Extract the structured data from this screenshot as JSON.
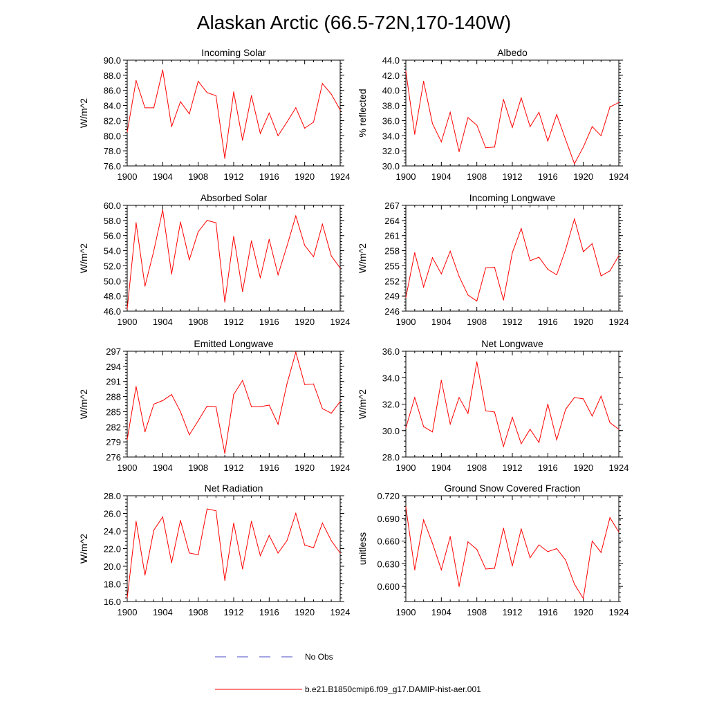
{
  "title": "Alaskan Arctic (66.5-72N,170-140W)",
  "colors": {
    "model": "#ff0000",
    "obs": "#4a4ac8",
    "axis": "#000000"
  },
  "legend": [
    {
      "label": "No Obs",
      "style": "dashed",
      "color": "#4a4ac8"
    },
    {
      "label": "b.e21.B1850cmip6.f09_g17.DAMIP-hist-aer.001",
      "style": "solid",
      "color": "#ff0000"
    }
  ],
  "chart_data": [
    {
      "type": "line",
      "title": "Incoming Solar",
      "ylabel": "W/m^2",
      "xlim": [
        1900,
        1924
      ],
      "ylim": [
        76,
        90
      ],
      "yticks": [
        "76.0",
        "78.0",
        "80.0",
        "82.0",
        "84.0",
        "86.0",
        "88.0",
        "90.0"
      ],
      "xticks": [
        "1900",
        "1904",
        "1908",
        "1912",
        "1916",
        "1920",
        "1924"
      ],
      "series": [
        {
          "x": [
            1900,
            1901,
            1902,
            1903,
            1904,
            1905,
            1906,
            1907,
            1908,
            1909,
            1910,
            1911,
            1912,
            1913,
            1914,
            1915,
            1916,
            1917,
            1918,
            1919,
            1920,
            1921,
            1922,
            1923,
            1924
          ],
          "values": [
            80.5,
            87.3,
            83.7,
            83.7,
            88.7,
            81.2,
            84.5,
            82.9,
            87.2,
            85.7,
            85.3,
            77.0,
            85.8,
            79.4,
            85.3,
            80.3,
            83.0,
            80.0,
            81.8,
            83.7,
            81.0,
            81.8,
            86.9,
            85.5,
            83.4
          ]
        }
      ]
    },
    {
      "type": "line",
      "title": "Albedo",
      "ylabel": "% reflected",
      "xlim": [
        1900,
        1924
      ],
      "ylim": [
        30,
        44
      ],
      "yticks": [
        "30.0",
        "32.0",
        "34.0",
        "36.0",
        "38.0",
        "40.0",
        "42.0",
        "44.0"
      ],
      "xticks": [
        "1900",
        "1904",
        "1908",
        "1912",
        "1916",
        "1920",
        "1924"
      ],
      "series": [
        {
          "x": [
            1900,
            1901,
            1902,
            1903,
            1904,
            1905,
            1906,
            1907,
            1908,
            1909,
            1910,
            1911,
            1912,
            1913,
            1914,
            1915,
            1916,
            1917,
            1918,
            1919,
            1920,
            1921,
            1922,
            1923,
            1924
          ],
          "values": [
            42.5,
            34.2,
            41.2,
            35.6,
            33.2,
            37.1,
            31.9,
            36.4,
            35.4,
            32.4,
            32.5,
            38.8,
            35.1,
            39.0,
            35.2,
            37.1,
            33.3,
            36.8,
            33.5,
            30.3,
            32.5,
            35.2,
            34.0,
            37.8,
            38.4
          ]
        }
      ]
    },
    {
      "type": "line",
      "title": "Absorbed Solar",
      "ylabel": "W/m^2",
      "xlim": [
        1900,
        1924
      ],
      "ylim": [
        46,
        60
      ],
      "yticks": [
        "46.0",
        "48.0",
        "50.0",
        "52.0",
        "54.0",
        "56.0",
        "58.0",
        "60.0"
      ],
      "xticks": [
        "1900",
        "1904",
        "1908",
        "1912",
        "1916",
        "1920",
        "1924"
      ],
      "series": [
        {
          "x": [
            1900,
            1901,
            1902,
            1903,
            1904,
            1905,
            1906,
            1907,
            1908,
            1909,
            1910,
            1911,
            1912,
            1913,
            1914,
            1915,
            1916,
            1917,
            1918,
            1919,
            1920,
            1921,
            1922,
            1923,
            1924
          ],
          "values": [
            46.3,
            57.7,
            49.3,
            54.0,
            59.4,
            50.9,
            57.8,
            52.8,
            56.5,
            58.0,
            57.7,
            47.2,
            55.9,
            48.6,
            55.3,
            50.4,
            55.5,
            50.8,
            54.6,
            58.6,
            54.7,
            53.2,
            57.5,
            53.3,
            51.7
          ]
        }
      ]
    },
    {
      "type": "line",
      "title": "Incoming Longwave",
      "ylabel": "W/m^2",
      "xlim": [
        1900,
        1924
      ],
      "ylim": [
        246,
        267
      ],
      "yticks": [
        "246",
        "249",
        "252",
        "255",
        "258",
        "261",
        "264",
        "267"
      ],
      "xticks": [
        "1900",
        "1904",
        "1908",
        "1912",
        "1916",
        "1920",
        "1924"
      ],
      "series": [
        {
          "x": [
            1900,
            1901,
            1902,
            1903,
            1904,
            1905,
            1906,
            1907,
            1908,
            1909,
            1910,
            1911,
            1912,
            1913,
            1914,
            1915,
            1916,
            1917,
            1918,
            1919,
            1920,
            1921,
            1922,
            1923,
            1924
          ],
          "values": [
            248.7,
            257.6,
            250.8,
            256.6,
            253.4,
            257.9,
            252.9,
            249.2,
            248.0,
            254.6,
            254.7,
            248.2,
            257.6,
            262.4,
            256.0,
            256.7,
            254.3,
            253.2,
            258.2,
            264.3,
            257.8,
            259.4,
            253.0,
            254.0,
            257.0
          ]
        }
      ]
    },
    {
      "type": "line",
      "title": "Emitted Longwave",
      "ylabel": "W/m^2",
      "xlim": [
        1900,
        1924
      ],
      "ylim": [
        276,
        297
      ],
      "yticks": [
        "276",
        "279",
        "282",
        "285",
        "288",
        "291",
        "294",
        "297"
      ],
      "xticks": [
        "1900",
        "1904",
        "1908",
        "1912",
        "1916",
        "1920",
        "1924"
      ],
      "series": [
        {
          "x": [
            1900,
            1901,
            1902,
            1903,
            1904,
            1905,
            1906,
            1907,
            1908,
            1909,
            1910,
            1911,
            1912,
            1913,
            1914,
            1915,
            1916,
            1917,
            1918,
            1919,
            1920,
            1921,
            1922,
            1923,
            1924
          ],
          "values": [
            279.5,
            290.0,
            281.0,
            286.5,
            287.2,
            288.4,
            285.0,
            280.4,
            283.2,
            286.1,
            286.0,
            276.7,
            288.4,
            291.2,
            286.0,
            286.0,
            286.3,
            282.5,
            290.5,
            296.8,
            290.4,
            290.5,
            285.6,
            284.7,
            287.0
          ]
        }
      ]
    },
    {
      "type": "line",
      "title": "Net Longwave",
      "ylabel": "W/m^2",
      "xlim": [
        1900,
        1924
      ],
      "ylim": [
        28,
        36
      ],
      "yticks": [
        "28.0",
        "30.0",
        "32.0",
        "34.0",
        "36.0"
      ],
      "xticks": [
        "1900",
        "1904",
        "1908",
        "1912",
        "1916",
        "1920",
        "1924"
      ],
      "series": [
        {
          "x": [
            1900,
            1901,
            1902,
            1903,
            1904,
            1905,
            1906,
            1907,
            1908,
            1909,
            1910,
            1911,
            1912,
            1913,
            1914,
            1915,
            1916,
            1917,
            1918,
            1919,
            1920,
            1921,
            1922,
            1923,
            1924
          ],
          "values": [
            30.2,
            32.5,
            30.3,
            29.9,
            33.8,
            30.5,
            32.5,
            31.3,
            35.2,
            31.5,
            31.4,
            28.8,
            31.0,
            29.0,
            30.1,
            29.1,
            32.0,
            29.3,
            31.6,
            32.5,
            32.4,
            31.1,
            32.6,
            30.6,
            30.1
          ]
        }
      ]
    },
    {
      "type": "line",
      "title": "Net Radiation",
      "ylabel": "W/m^2",
      "xlim": [
        1900,
        1924
      ],
      "ylim": [
        16,
        28
      ],
      "yticks": [
        "16.0",
        "18.0",
        "20.0",
        "22.0",
        "24.0",
        "26.0",
        "28.0"
      ],
      "xticks": [
        "1900",
        "1904",
        "1908",
        "1912",
        "1916",
        "1920",
        "1924"
      ],
      "series": [
        {
          "x": [
            1900,
            1901,
            1902,
            1903,
            1904,
            1905,
            1906,
            1907,
            1908,
            1909,
            1910,
            1911,
            1912,
            1913,
            1914,
            1915,
            1916,
            1917,
            1918,
            1919,
            1920,
            1921,
            1922,
            1923,
            1924
          ],
          "values": [
            16.4,
            25.1,
            19.0,
            24.1,
            25.6,
            20.4,
            25.2,
            21.5,
            21.3,
            26.5,
            26.3,
            18.4,
            24.9,
            19.7,
            25.1,
            21.2,
            23.5,
            21.5,
            22.9,
            26.0,
            22.4,
            22.1,
            24.9,
            22.9,
            21.5
          ]
        }
      ]
    },
    {
      "type": "line",
      "title": "Ground Snow Covered Fraction",
      "ylabel": "unitless",
      "xlim": [
        1900,
        1924
      ],
      "ylim": [
        0.58,
        0.72
      ],
      "yticks": [
        "0.600",
        "0.630",
        "0.660",
        "0.690",
        "0.720"
      ],
      "xticks": [
        "1900",
        "1904",
        "1908",
        "1912",
        "1916",
        "1920",
        "1924"
      ],
      "series": [
        {
          "x": [
            1900,
            1901,
            1902,
            1903,
            1904,
            1905,
            1906,
            1907,
            1908,
            1909,
            1910,
            1911,
            1912,
            1913,
            1914,
            1915,
            1916,
            1917,
            1918,
            1919,
            1920,
            1921,
            1922,
            1923,
            1924
          ],
          "values": [
            0.705,
            0.622,
            0.688,
            0.657,
            0.622,
            0.666,
            0.6,
            0.659,
            0.649,
            0.623,
            0.624,
            0.677,
            0.627,
            0.676,
            0.638,
            0.655,
            0.646,
            0.65,
            0.635,
            0.603,
            0.584,
            0.66,
            0.645,
            0.691,
            0.672
          ]
        }
      ]
    }
  ]
}
